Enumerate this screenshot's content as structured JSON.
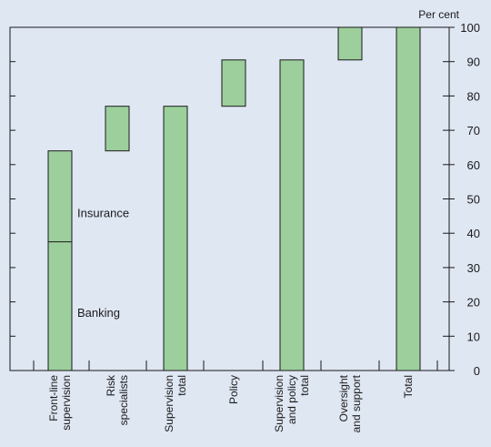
{
  "chart_data": {
    "type": "bar",
    "subtype": "waterfall",
    "y_unit_label": "Per cent",
    "ylim": [
      0,
      100
    ],
    "y_ticks": [
      0,
      10,
      20,
      30,
      40,
      50,
      60,
      70,
      80,
      90,
      100
    ],
    "y_axis_side": "right",
    "grid": false,
    "categories": [
      [
        "Front-line",
        "supervision"
      ],
      [
        "Risk",
        "specialists"
      ],
      [
        "Supervision",
        "total"
      ],
      [
        "Policy"
      ],
      [
        "Supervision",
        "and policy",
        "total"
      ],
      [
        "Oversight",
        "and support"
      ],
      [
        "Total"
      ]
    ],
    "bars": [
      {
        "start": 0,
        "end": 64,
        "segments": [
          {
            "name": "Banking",
            "start": 0,
            "end": 37.5
          },
          {
            "name": "Insurance",
            "start": 37.5,
            "end": 64
          }
        ]
      },
      {
        "start": 64,
        "end": 77
      },
      {
        "start": 0,
        "end": 77
      },
      {
        "start": 77,
        "end": 90.5
      },
      {
        "start": 0,
        "end": 90.5
      },
      {
        "start": 90.5,
        "end": 100
      },
      {
        "start": 0,
        "end": 100
      }
    ],
    "annotations": [
      {
        "text": "Insurance",
        "bar": 0,
        "at": 46
      },
      {
        "text": "Banking",
        "bar": 0,
        "at": 17
      }
    ],
    "colors": {
      "bar_fill": "#9ccf9c",
      "bar_stroke": "#1a1a1a",
      "background": "#dfe7f3"
    }
  }
}
